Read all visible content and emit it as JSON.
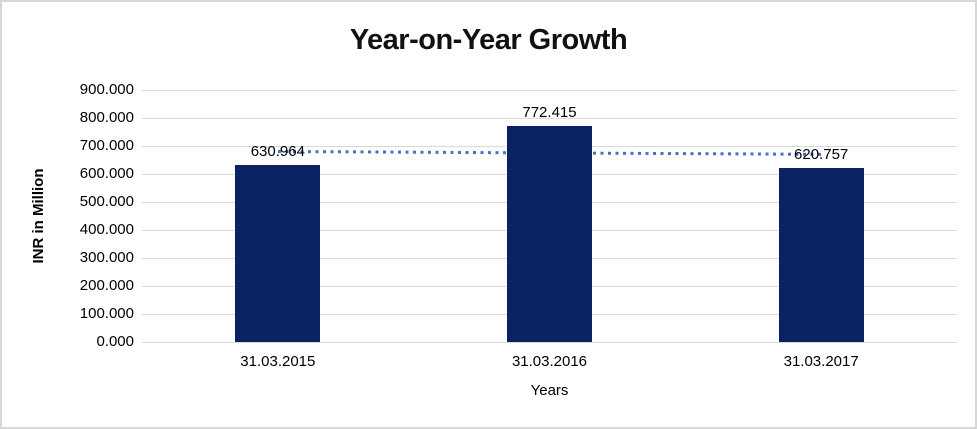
{
  "chart_data": {
    "type": "bar",
    "title": "Year-on-Year Growth",
    "xlabel": "Years",
    "ylabel": "INR in Million",
    "categories": [
      "31.03.2015",
      "31.03.2016",
      "31.03.2017"
    ],
    "values": [
      630.964,
      772.415,
      620.757
    ],
    "data_labels": [
      "630.964",
      "772.415",
      "620.757"
    ],
    "ylim": [
      0,
      900
    ],
    "ytick_step": 100,
    "ytick_labels": [
      "0.000",
      "100.000",
      "200.000",
      "300.000",
      "400.000",
      "500.000",
      "600.000",
      "700.000",
      "800.000",
      "900.000"
    ],
    "grid": true,
    "legend": false,
    "trendline": {
      "type": "linear",
      "style": "dotted"
    },
    "colors": {
      "bar": "#0A2164",
      "trendline": "#4472C4",
      "gridline": "#D9D9D9",
      "frame_border": "#D8D8D8",
      "text": "#000000",
      "background": "#FFFFFF"
    }
  }
}
